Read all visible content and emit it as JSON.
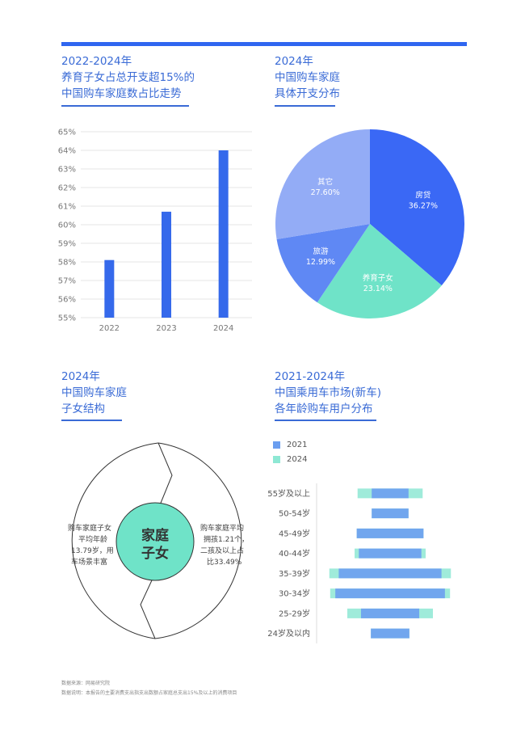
{
  "colors": {
    "accent": "#2f66f0",
    "bar": "#3569eb",
    "pie_housing": "#3a68f5",
    "pie_children": "#6fe3c8",
    "pie_travel": "#5f88f4",
    "pie_other": "#93acf6",
    "circle_fill": "#6fe3c8",
    "series_2021": "#6b9ef0",
    "series_2024": "#8ee8d4"
  },
  "panel1": {
    "title_lines": [
      "2022-2024年",
      "养育子女占总开支超15%的",
      "中国购车家庭数占比走势"
    ]
  },
  "panel2": {
    "title_lines": [
      "2024年",
      "中国购车家庭",
      "具体开支分布"
    ]
  },
  "panel3": {
    "title_lines": [
      "2024年",
      "中国购车家庭",
      "子女结构"
    ],
    "center_label_lines": [
      "家庭",
      "子女"
    ],
    "left_text_lines": [
      "购车家庭子女",
      "平均年龄",
      "13.79岁，用",
      "车场景丰富"
    ],
    "right_text_lines": [
      "购车家庭平均",
      "拥孩1.21个，",
      "二孩及以上占",
      "比33.49%"
    ]
  },
  "panel4": {
    "title_lines": [
      "2021-2024年",
      "中国乘用车市场(新车)",
      "各年龄购车用户分布"
    ]
  },
  "footnotes": [
    "数据来源：网易研究院",
    "数据说明：本报告的主要消费支出指支出数额占家庭总支出15%及以上的消费项目"
  ],
  "chart_data": [
    {
      "type": "bar",
      "categories": [
        "2022",
        "2023",
        "2024"
      ],
      "values": [
        58.1,
        60.7,
        64.0
      ],
      "ylim": [
        55,
        65
      ],
      "yticks": [
        "55%",
        "56%",
        "57%",
        "58%",
        "59%",
        "60%",
        "61%",
        "62%",
        "63%",
        "64%",
        "65%"
      ],
      "grid": true
    },
    {
      "type": "pie",
      "slices": [
        {
          "label": "房贷",
          "value": 36.27,
          "value_text": "36.27%"
        },
        {
          "label": "养育子女",
          "value": 23.14,
          "value_text": "23.14%"
        },
        {
          "label": "旅游",
          "value": 12.99,
          "value_text": "12.99%"
        },
        {
          "label": "其它",
          "value": 27.6,
          "value_text": "27.60%"
        }
      ]
    },
    {
      "type": "bar",
      "orientation": "horizontal-centered",
      "categories": [
        "55岁及以上",
        "50-54岁",
        "45-49岁",
        "40-44岁",
        "35-39岁",
        "30-34岁",
        "25-29岁",
        "24岁及以内"
      ],
      "legend": [
        "2021",
        "2024"
      ],
      "series": [
        {
          "name": "2021",
          "values": [
            4.3,
            4.3,
            7.8,
            7.3,
            12.0,
            12.8,
            6.8,
            4.5
          ]
        },
        {
          "name": "2024",
          "values": [
            7.6,
            4.3,
            7.8,
            8.3,
            14.2,
            14.0,
            10.0,
            4.5
          ]
        }
      ]
    }
  ]
}
